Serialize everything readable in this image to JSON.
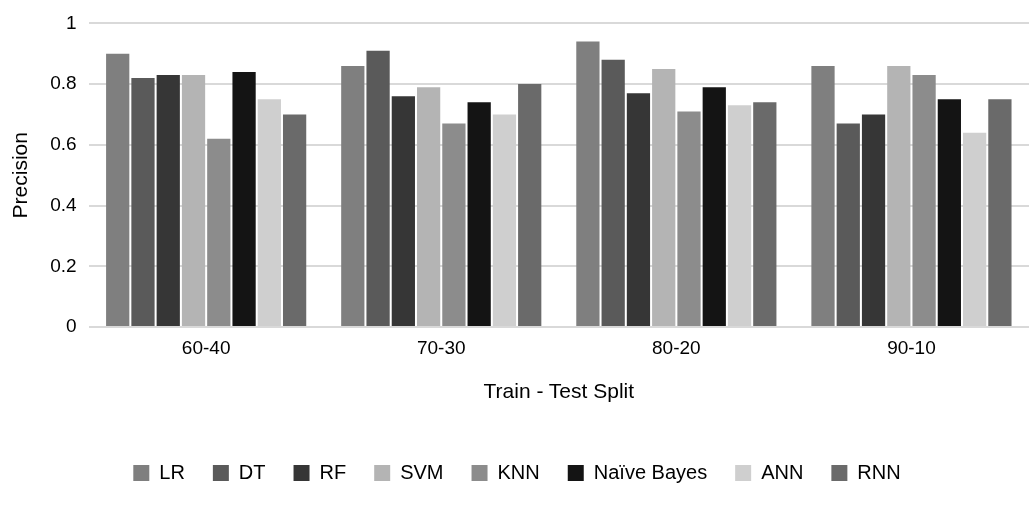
{
  "chart_data": {
    "type": "bar",
    "xlabel": "Train - Test Split",
    "ylabel": "Precision",
    "categories": [
      "60-40",
      "70-30",
      "80-20",
      "90-10"
    ],
    "series": [
      {
        "name": "LR",
        "color": "#7f7f7f",
        "values": [
          0.9,
          0.86,
          0.94,
          0.86
        ]
      },
      {
        "name": "DT",
        "color": "#5a5a5a",
        "values": [
          0.82,
          0.91,
          0.88,
          0.67
        ]
      },
      {
        "name": "RF",
        "color": "#363636",
        "values": [
          0.83,
          0.76,
          0.77,
          0.7
        ]
      },
      {
        "name": "SVM",
        "color": "#b4b4b4",
        "values": [
          0.83,
          0.79,
          0.85,
          0.86
        ]
      },
      {
        "name": "KNN",
        "color": "#8c8c8c",
        "values": [
          0.62,
          0.67,
          0.71,
          0.83
        ]
      },
      {
        "name": "Naïve Bayes",
        "color": "#141414",
        "values": [
          0.84,
          0.74,
          0.79,
          0.75
        ]
      },
      {
        "name": "ANN",
        "color": "#cfcfcf",
        "values": [
          0.75,
          0.7,
          0.73,
          0.64
        ]
      },
      {
        "name": "RNN",
        "color": "#6a6a6a",
        "values": [
          0.7,
          0.8,
          0.74,
          0.75
        ]
      }
    ],
    "ylim": [
      0,
      1
    ],
    "yticks": [
      0,
      0.2,
      0.4,
      0.6,
      0.8,
      1
    ],
    "grid": "y",
    "legend": "bottom"
  }
}
